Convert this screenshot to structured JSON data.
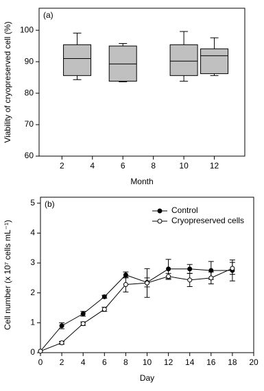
{
  "chart_data": [
    {
      "type": "box",
      "panel_label": "(a)",
      "y_label": "Viability of cryopreserved cell (%)",
      "x_label": "Month",
      "x": [
        3,
        6,
        10,
        12
      ],
      "boxes": [
        {
          "min": 84.3,
          "q1": 85.6,
          "median": 91.0,
          "q3": 95.4,
          "max": 99.1
        },
        {
          "min": 83.6,
          "q1": 83.8,
          "median": 89.3,
          "q3": 95.0,
          "max": 95.8
        },
        {
          "min": 83.8,
          "q1": 85.6,
          "median": 90.2,
          "q3": 95.4,
          "max": 99.6
        },
        {
          "min": 85.6,
          "q1": 86.2,
          "median": 91.9,
          "q3": 94.1,
          "max": 97.6
        }
      ],
      "color": "#c0c0c0",
      "xlim": [
        0.5,
        14
      ],
      "xticks": [
        2,
        4,
        6,
        8,
        10,
        12
      ],
      "ylim": [
        60,
        107
      ],
      "yticks": [
        60,
        70,
        80,
        90,
        100
      ]
    },
    {
      "type": "line",
      "panel_label": "(b)",
      "y_label": "Cell number (x 10⁷ cells mL⁻¹)",
      "x_label": "Day",
      "x": [
        0,
        2,
        4,
        6,
        8,
        10,
        12,
        14,
        16,
        18
      ],
      "series": [
        {
          "name": "Control",
          "color": "#000000",
          "marker": "filled",
          "values": [
            0.05,
            0.9,
            1.3,
            1.87,
            2.6,
            2.35,
            2.8,
            2.8,
            2.75,
            2.75
          ],
          "errors": [
            0,
            0.1,
            0.08,
            0.05,
            0.1,
            0.15,
            0.32,
            0.15,
            0.3,
            0.35
          ]
        },
        {
          "name": "Cryopreserved cells",
          "color": "#000000",
          "marker": "open",
          "values": [
            0.05,
            0.33,
            0.97,
            1.45,
            2.28,
            2.33,
            2.55,
            2.43,
            2.5,
            2.82
          ],
          "errors": [
            0,
            0.05,
            0.06,
            0.07,
            0.25,
            0.48,
            0.1,
            0.22,
            0.2,
            0.2
          ]
        }
      ],
      "xlim": [
        0,
        20
      ],
      "xticks": [
        0,
        2,
        4,
        6,
        8,
        10,
        12,
        14,
        16,
        18,
        20
      ],
      "ylim": [
        0,
        5.2
      ],
      "yticks": [
        0,
        1,
        2,
        3,
        4,
        5
      ],
      "legend": "upper right"
    }
  ]
}
